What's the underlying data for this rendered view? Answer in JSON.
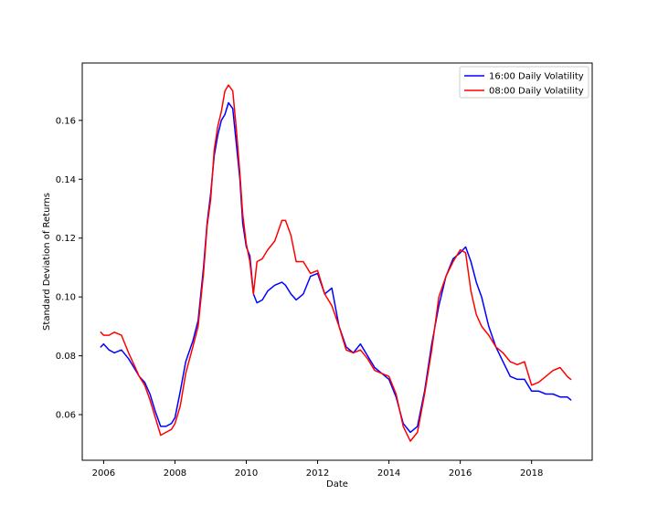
{
  "chart_data": {
    "type": "line",
    "xlabel": "Date",
    "ylabel": "Standard Deviation of Returns",
    "xlim": [
      2005.4,
      2019.7
    ],
    "ylim": [
      0.0445,
      0.1795
    ],
    "xticks": [
      2006,
      2008,
      2010,
      2012,
      2014,
      2016,
      2018
    ],
    "xtick_labels": [
      "2006",
      "2008",
      "2010",
      "2012",
      "2014",
      "2016",
      "2018"
    ],
    "yticks": [
      0.06,
      0.08,
      0.1,
      0.12,
      0.14,
      0.16
    ],
    "ytick_labels": [
      "0.06",
      "0.08",
      "0.10",
      "0.12",
      "0.14",
      "0.16"
    ],
    "grid": false,
    "legend_position": "top-right",
    "series": [
      {
        "name": "16:00 Daily Volatility",
        "color": "#0000ff",
        "x": [
          2005.92,
          2006.0,
          2006.15,
          2006.3,
          2006.5,
          2006.7,
          2006.85,
          2007.0,
          2007.15,
          2007.3,
          2007.45,
          2007.6,
          2007.75,
          2007.9,
          2008.0,
          2008.15,
          2008.3,
          2008.5,
          2008.65,
          2008.8,
          2008.9,
          2009.0,
          2009.1,
          2009.2,
          2009.3,
          2009.4,
          2009.5,
          2009.62,
          2009.72,
          2009.82,
          2009.9,
          2010.0,
          2010.1,
          2010.2,
          2010.3,
          2010.45,
          2010.6,
          2010.8,
          2011.0,
          2011.1,
          2011.25,
          2011.4,
          2011.6,
          2011.8,
          2012.0,
          2012.2,
          2012.4,
          2012.6,
          2012.8,
          2013.0,
          2013.2,
          2013.4,
          2013.6,
          2013.8,
          2014.0,
          2014.2,
          2014.4,
          2014.6,
          2014.8,
          2015.0,
          2015.2,
          2015.4,
          2015.6,
          2015.8,
          2016.0,
          2016.15,
          2016.3,
          2016.45,
          2016.6,
          2016.8,
          2017.0,
          2017.2,
          2017.4,
          2017.6,
          2017.8,
          2018.0,
          2018.2,
          2018.4,
          2018.6,
          2018.8,
          2019.0,
          2019.1
        ],
        "values": [
          0.083,
          0.084,
          0.082,
          0.081,
          0.082,
          0.079,
          0.076,
          0.073,
          0.071,
          0.067,
          0.061,
          0.056,
          0.056,
          0.057,
          0.059,
          0.068,
          0.078,
          0.085,
          0.092,
          0.11,
          0.125,
          0.135,
          0.148,
          0.155,
          0.16,
          0.162,
          0.166,
          0.164,
          0.152,
          0.14,
          0.125,
          0.117,
          0.114,
          0.101,
          0.098,
          0.099,
          0.102,
          0.104,
          0.105,
          0.104,
          0.101,
          0.099,
          0.101,
          0.107,
          0.108,
          0.101,
          0.103,
          0.09,
          0.083,
          0.081,
          0.084,
          0.08,
          0.076,
          0.074,
          0.072,
          0.066,
          0.057,
          0.054,
          0.056,
          0.068,
          0.084,
          0.097,
          0.107,
          0.113,
          0.115,
          0.117,
          0.112,
          0.105,
          0.1,
          0.09,
          0.083,
          0.078,
          0.073,
          0.072,
          0.072,
          0.068,
          0.068,
          0.067,
          0.067,
          0.066,
          0.066,
          0.065
        ]
      },
      {
        "name": "08:00 Daily Volatility",
        "color": "#ff0000",
        "x": [
          2005.92,
          2006.0,
          2006.15,
          2006.3,
          2006.5,
          2006.7,
          2006.85,
          2007.0,
          2007.15,
          2007.3,
          2007.45,
          2007.6,
          2007.75,
          2007.9,
          2008.0,
          2008.15,
          2008.3,
          2008.5,
          2008.65,
          2008.8,
          2008.9,
          2009.0,
          2009.1,
          2009.2,
          2009.3,
          2009.4,
          2009.5,
          2009.62,
          2009.72,
          2009.82,
          2009.9,
          2010.0,
          2010.1,
          2010.2,
          2010.3,
          2010.45,
          2010.6,
          2010.8,
          2011.0,
          2011.1,
          2011.25,
          2011.4,
          2011.6,
          2011.8,
          2012.0,
          2012.2,
          2012.4,
          2012.6,
          2012.8,
          2013.0,
          2013.2,
          2013.4,
          2013.6,
          2013.8,
          2014.0,
          2014.2,
          2014.4,
          2014.6,
          2014.8,
          2015.0,
          2015.2,
          2015.4,
          2015.6,
          2015.8,
          2016.0,
          2016.15,
          2016.3,
          2016.45,
          2016.6,
          2016.8,
          2017.0,
          2017.2,
          2017.4,
          2017.6,
          2017.8,
          2018.0,
          2018.2,
          2018.4,
          2018.6,
          2018.8,
          2019.0,
          2019.1
        ],
        "values": [
          0.088,
          0.087,
          0.087,
          0.088,
          0.087,
          0.081,
          0.077,
          0.073,
          0.07,
          0.065,
          0.059,
          0.053,
          0.054,
          0.055,
          0.057,
          0.063,
          0.074,
          0.083,
          0.09,
          0.108,
          0.124,
          0.133,
          0.15,
          0.158,
          0.163,
          0.17,
          0.172,
          0.17,
          0.157,
          0.142,
          0.128,
          0.118,
          0.112,
          0.101,
          0.112,
          0.113,
          0.116,
          0.119,
          0.126,
          0.126,
          0.121,
          0.112,
          0.112,
          0.108,
          0.109,
          0.101,
          0.097,
          0.09,
          0.082,
          0.081,
          0.082,
          0.079,
          0.075,
          0.074,
          0.073,
          0.067,
          0.056,
          0.051,
          0.054,
          0.067,
          0.082,
          0.1,
          0.107,
          0.112,
          0.116,
          0.115,
          0.102,
          0.094,
          0.09,
          0.087,
          0.083,
          0.081,
          0.078,
          0.077,
          0.078,
          0.07,
          0.071,
          0.073,
          0.075,
          0.076,
          0.073,
          0.072
        ]
      }
    ]
  }
}
